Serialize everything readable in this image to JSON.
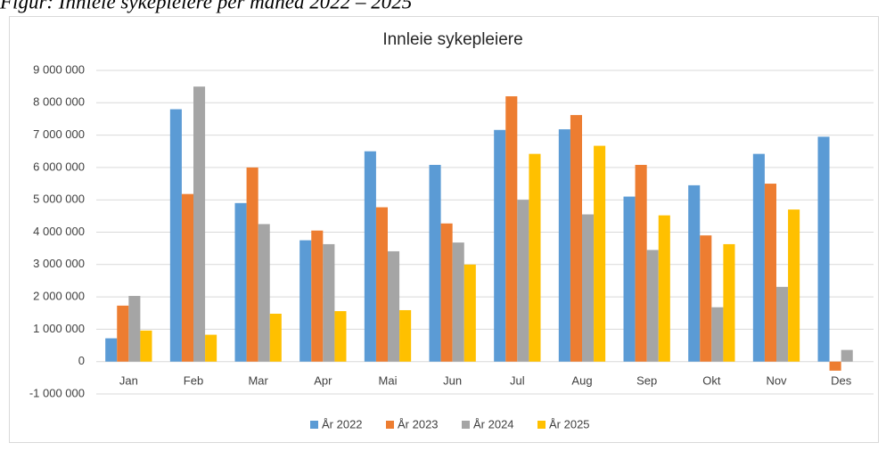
{
  "caption": "Figur: Innleie sykepleiere per måned 2022 – 2025",
  "chart_data": {
    "type": "bar",
    "title": "Innleie sykepleiere",
    "categories": [
      "Jan",
      "Feb",
      "Mar",
      "Apr",
      "Mai",
      "Jun",
      "Jul",
      "Aug",
      "Sep",
      "Okt",
      "Nov",
      "Des"
    ],
    "series": [
      {
        "name": "År 2022",
        "color": "#5b9bd5",
        "values": [
          720000,
          7800000,
          4900000,
          3750000,
          6500000,
          6080000,
          7160000,
          7180000,
          5100000,
          5450000,
          6420000,
          6950000
        ]
      },
      {
        "name": "År 2023",
        "color": "#ed7d31",
        "values": [
          1730000,
          5180000,
          6000000,
          4050000,
          4770000,
          4270000,
          8200000,
          7620000,
          6080000,
          3900000,
          5500000,
          -280000
        ]
      },
      {
        "name": "År 2024",
        "color": "#a5a5a5",
        "values": [
          2030000,
          8500000,
          4250000,
          3630000,
          3410000,
          3680000,
          5000000,
          4550000,
          3450000,
          1680000,
          2310000,
          360000
        ]
      },
      {
        "name": "År 2025",
        "color": "#ffc000",
        "values": [
          960000,
          830000,
          1480000,
          1560000,
          1590000,
          3000000,
          6420000,
          6670000,
          4520000,
          3630000,
          4700000,
          null
        ]
      }
    ],
    "ylim": [
      -1000000,
      9000000
    ],
    "yticks": [
      {
        "value": -1000000,
        "label": "-1 000 000"
      },
      0,
      {
        "value": 1000000,
        "label": "1 000 000"
      },
      {
        "value": 2000000,
        "label": "2 000 000"
      },
      {
        "value": 3000000,
        "label": "3 000 000"
      },
      {
        "value": 4000000,
        "label": "4 000 000"
      },
      {
        "value": 5000000,
        "label": "5 000 000"
      },
      {
        "value": 6000000,
        "label": "6 000 000"
      },
      {
        "value": 7000000,
        "label": "7 000 000"
      },
      {
        "value": 8000000,
        "label": "8 000 000"
      },
      {
        "value": 9000000,
        "label": "9 000 000"
      }
    ],
    "grid": true,
    "legend": "bottom"
  }
}
